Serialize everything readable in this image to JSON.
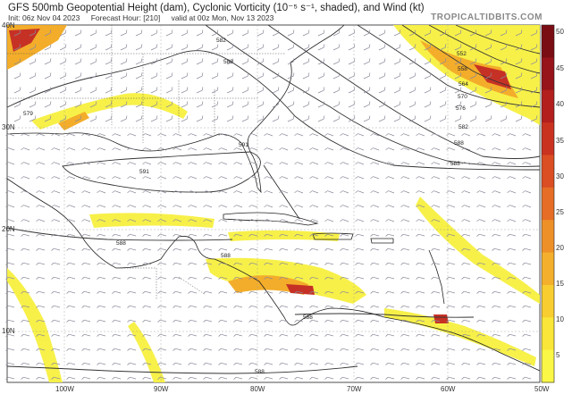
{
  "header": {
    "title": "GFS 500mb Geopotential Height (dam), Cyclonic Vorticity (10⁻⁵ s⁻¹, shaded), and Wind (kt)",
    "init": "Init: 06z Nov 04 2023",
    "forecast_hour": "Forecast Hour: [210]",
    "valid": "valid at 00z Mon, Nov 13 2023",
    "brand": "TROPICALTIDBITS.COM"
  },
  "map": {
    "lat_labels": [
      "40N",
      "30N",
      "20N",
      "10N"
    ],
    "lon_labels": [
      "100W",
      "90W",
      "80W",
      "70W",
      "60W",
      "50W"
    ],
    "height_contour_labels": [
      "582",
      "588",
      "591",
      "588",
      "588",
      "588",
      "588",
      "579",
      "552",
      "558",
      "564",
      "570",
      "576",
      "582",
      "588",
      "588",
      "591"
    ],
    "colors": {
      "land": "#ffffff",
      "contour": "#333333",
      "barb": "#8a8a9a",
      "vort_light": "#f7f040",
      "vort_mid": "#f3a91f",
      "vort_high": "#c4271a"
    }
  },
  "colorbar": {
    "ticks": [
      "50",
      "45",
      "40",
      "35",
      "30",
      "25",
      "20",
      "15",
      "10",
      "5"
    ],
    "colors": [
      "#7a0d14",
      "#96141a",
      "#b21f1d",
      "#c9321f",
      "#db4d22",
      "#e66d25",
      "#ee9028",
      "#f4b02c",
      "#f8cd30",
      "#f9e638",
      "#fbf746"
    ]
  }
}
